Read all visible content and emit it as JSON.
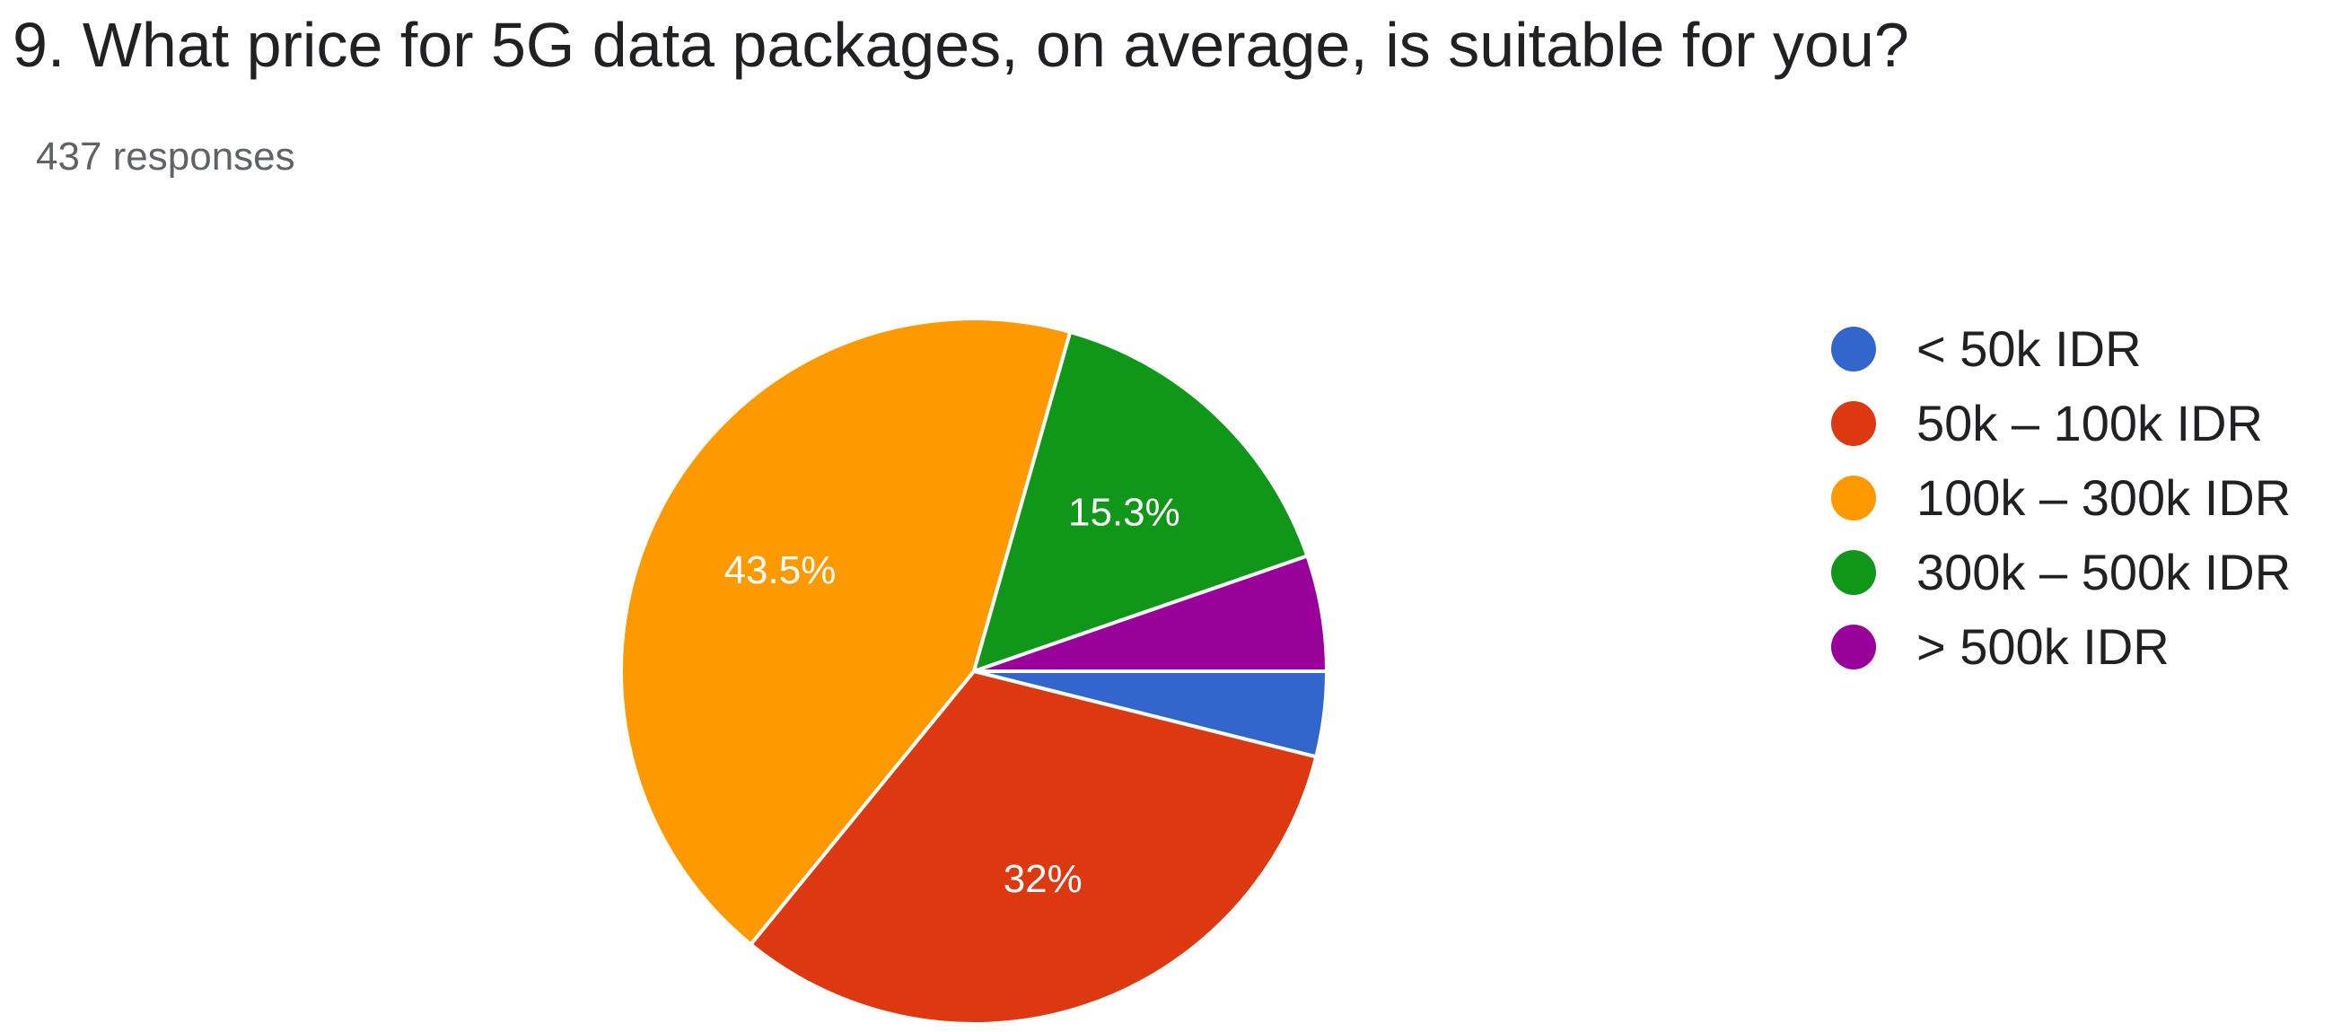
{
  "question": {
    "title": "9. What price for 5G data packages, on average, is suitable for you?",
    "responses": "437 responses"
  },
  "chart_data": {
    "type": "pie",
    "categories": [
      "< 50k IDR",
      "50k – 100k IDR",
      "100k – 300k IDR",
      "300k – 500k IDR",
      "> 500k IDR"
    ],
    "values": [
      3.9,
      32,
      43.5,
      15.3,
      5.3
    ],
    "data_labels": [
      "",
      "32%",
      "43.5%",
      "15.3%",
      ""
    ],
    "colors": [
      "#3366cc",
      "#dc3912",
      "#ff9900",
      "#109618",
      "#990099"
    ],
    "start": "3 o'clock, clockwise",
    "legend_position": "right"
  }
}
